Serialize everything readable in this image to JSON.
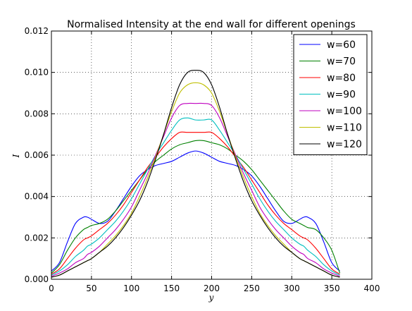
{
  "chart_data": {
    "type": "line",
    "title": "Normalised Intensity at the end wall for different openings",
    "xlabel": "y",
    "ylabel": "I",
    "xlim": [
      0,
      400
    ],
    "ylim": [
      0,
      0.012
    ],
    "x_ticks": [
      "0",
      "50",
      "100",
      "150",
      "200",
      "250",
      "300",
      "350",
      "400"
    ],
    "y_ticks": [
      "0.000",
      "0.002",
      "0.004",
      "0.006",
      "0.008",
      "0.010",
      "0.012"
    ],
    "grid": true,
    "legend_position": "top-right",
    "x": [
      0,
      10,
      20,
      30,
      40,
      45,
      50,
      60,
      70,
      80,
      90,
      100,
      110,
      120,
      130,
      140,
      150,
      160,
      170,
      180,
      190,
      200,
      210,
      220,
      230,
      240,
      250,
      260,
      270,
      280,
      290,
      300,
      310,
      315,
      320,
      330,
      340,
      350,
      360
    ],
    "series": [
      {
        "name": "w=60",
        "color": "#0000ff",
        "values": [
          0.0004,
          0.0008,
          0.0018,
          0.0027,
          0.003,
          0.003,
          0.0029,
          0.0027,
          0.0028,
          0.0033,
          0.0039,
          0.0045,
          0.005,
          0.0053,
          0.0055,
          0.0056,
          0.0057,
          0.0059,
          0.0061,
          0.0062,
          0.0061,
          0.0059,
          0.0057,
          0.0056,
          0.0055,
          0.0053,
          0.005,
          0.0045,
          0.0039,
          0.0033,
          0.0028,
          0.0027,
          0.0029,
          0.003,
          0.003,
          0.0027,
          0.0018,
          0.0008,
          0.0004
        ]
      },
      {
        "name": "w=70",
        "color": "#008000",
        "values": [
          0.0003,
          0.0007,
          0.0014,
          0.002,
          0.0024,
          0.0025,
          0.0026,
          0.0027,
          0.0029,
          0.0033,
          0.0038,
          0.0043,
          0.0048,
          0.0053,
          0.0057,
          0.006,
          0.0063,
          0.0065,
          0.0066,
          0.0067,
          0.0067,
          0.0066,
          0.0065,
          0.0063,
          0.006,
          0.0057,
          0.0053,
          0.0048,
          0.0043,
          0.0038,
          0.0033,
          0.0029,
          0.0027,
          0.0026,
          0.0025,
          0.0024,
          0.002,
          0.0014,
          0.0003
        ]
      },
      {
        "name": "w=80",
        "color": "#ff0000",
        "values": [
          0.00025,
          0.0005,
          0.001,
          0.0015,
          0.0019,
          0.002,
          0.0021,
          0.0024,
          0.0027,
          0.0031,
          0.0036,
          0.0042,
          0.0048,
          0.0054,
          0.0059,
          0.0064,
          0.0068,
          0.0071,
          0.0071,
          0.0071,
          0.0071,
          0.0071,
          0.0068,
          0.0064,
          0.0059,
          0.0054,
          0.0048,
          0.0042,
          0.0036,
          0.0031,
          0.0027,
          0.0024,
          0.0021,
          0.002,
          0.0019,
          0.0015,
          0.001,
          0.0005,
          0.00025
        ]
      },
      {
        "name": "w=90",
        "color": "#00bfbf",
        "values": [
          0.0002,
          0.0004,
          0.0007,
          0.0011,
          0.0014,
          0.0016,
          0.0017,
          0.002,
          0.0024,
          0.0028,
          0.0033,
          0.0039,
          0.0046,
          0.0053,
          0.006,
          0.0066,
          0.0072,
          0.0077,
          0.0078,
          0.0077,
          0.0077,
          0.0077,
          0.0072,
          0.0066,
          0.006,
          0.0053,
          0.0046,
          0.0039,
          0.0033,
          0.0028,
          0.0024,
          0.002,
          0.0017,
          0.0016,
          0.0014,
          0.0011,
          0.0007,
          0.0004,
          0.0002
        ]
      },
      {
        "name": "w=100",
        "color": "#bf00bf",
        "values": [
          0.00015,
          0.0003,
          0.0005,
          0.0008,
          0.001,
          0.0012,
          0.0013,
          0.0016,
          0.002,
          0.0024,
          0.0029,
          0.0035,
          0.0043,
          0.0051,
          0.006,
          0.0069,
          0.0078,
          0.0084,
          0.0085,
          0.0085,
          0.0085,
          0.0084,
          0.0078,
          0.0069,
          0.006,
          0.0051,
          0.0043,
          0.0035,
          0.0029,
          0.0024,
          0.002,
          0.0016,
          0.0013,
          0.0012,
          0.001,
          0.0008,
          0.0005,
          0.0003,
          0.00015
        ]
      },
      {
        "name": "w=110",
        "color": "#bfbf00",
        "values": [
          0.0001,
          0.0002,
          0.0004,
          0.0006,
          0.0008,
          0.0009,
          0.001,
          0.0013,
          0.0017,
          0.0021,
          0.0026,
          0.0032,
          0.004,
          0.0049,
          0.0059,
          0.007,
          0.0081,
          0.009,
          0.0094,
          0.0095,
          0.0094,
          0.009,
          0.0081,
          0.007,
          0.0059,
          0.0049,
          0.004,
          0.0032,
          0.0026,
          0.0021,
          0.0017,
          0.0013,
          0.001,
          0.0009,
          0.0008,
          0.0006,
          0.0004,
          0.0002,
          0.0001
        ]
      },
      {
        "name": "w=120",
        "color": "#000000",
        "values": [
          0.0001,
          0.0002,
          0.0004,
          0.0006,
          0.0008,
          0.0009,
          0.001,
          0.0013,
          0.0016,
          0.002,
          0.0025,
          0.0031,
          0.0038,
          0.0047,
          0.0058,
          0.007,
          0.0083,
          0.0094,
          0.01,
          0.0101,
          0.01,
          0.0094,
          0.0083,
          0.007,
          0.0058,
          0.0047,
          0.0038,
          0.0031,
          0.0025,
          0.002,
          0.0016,
          0.0013,
          0.001,
          0.0009,
          0.0008,
          0.0006,
          0.0004,
          0.0002,
          0.0001
        ]
      }
    ]
  }
}
